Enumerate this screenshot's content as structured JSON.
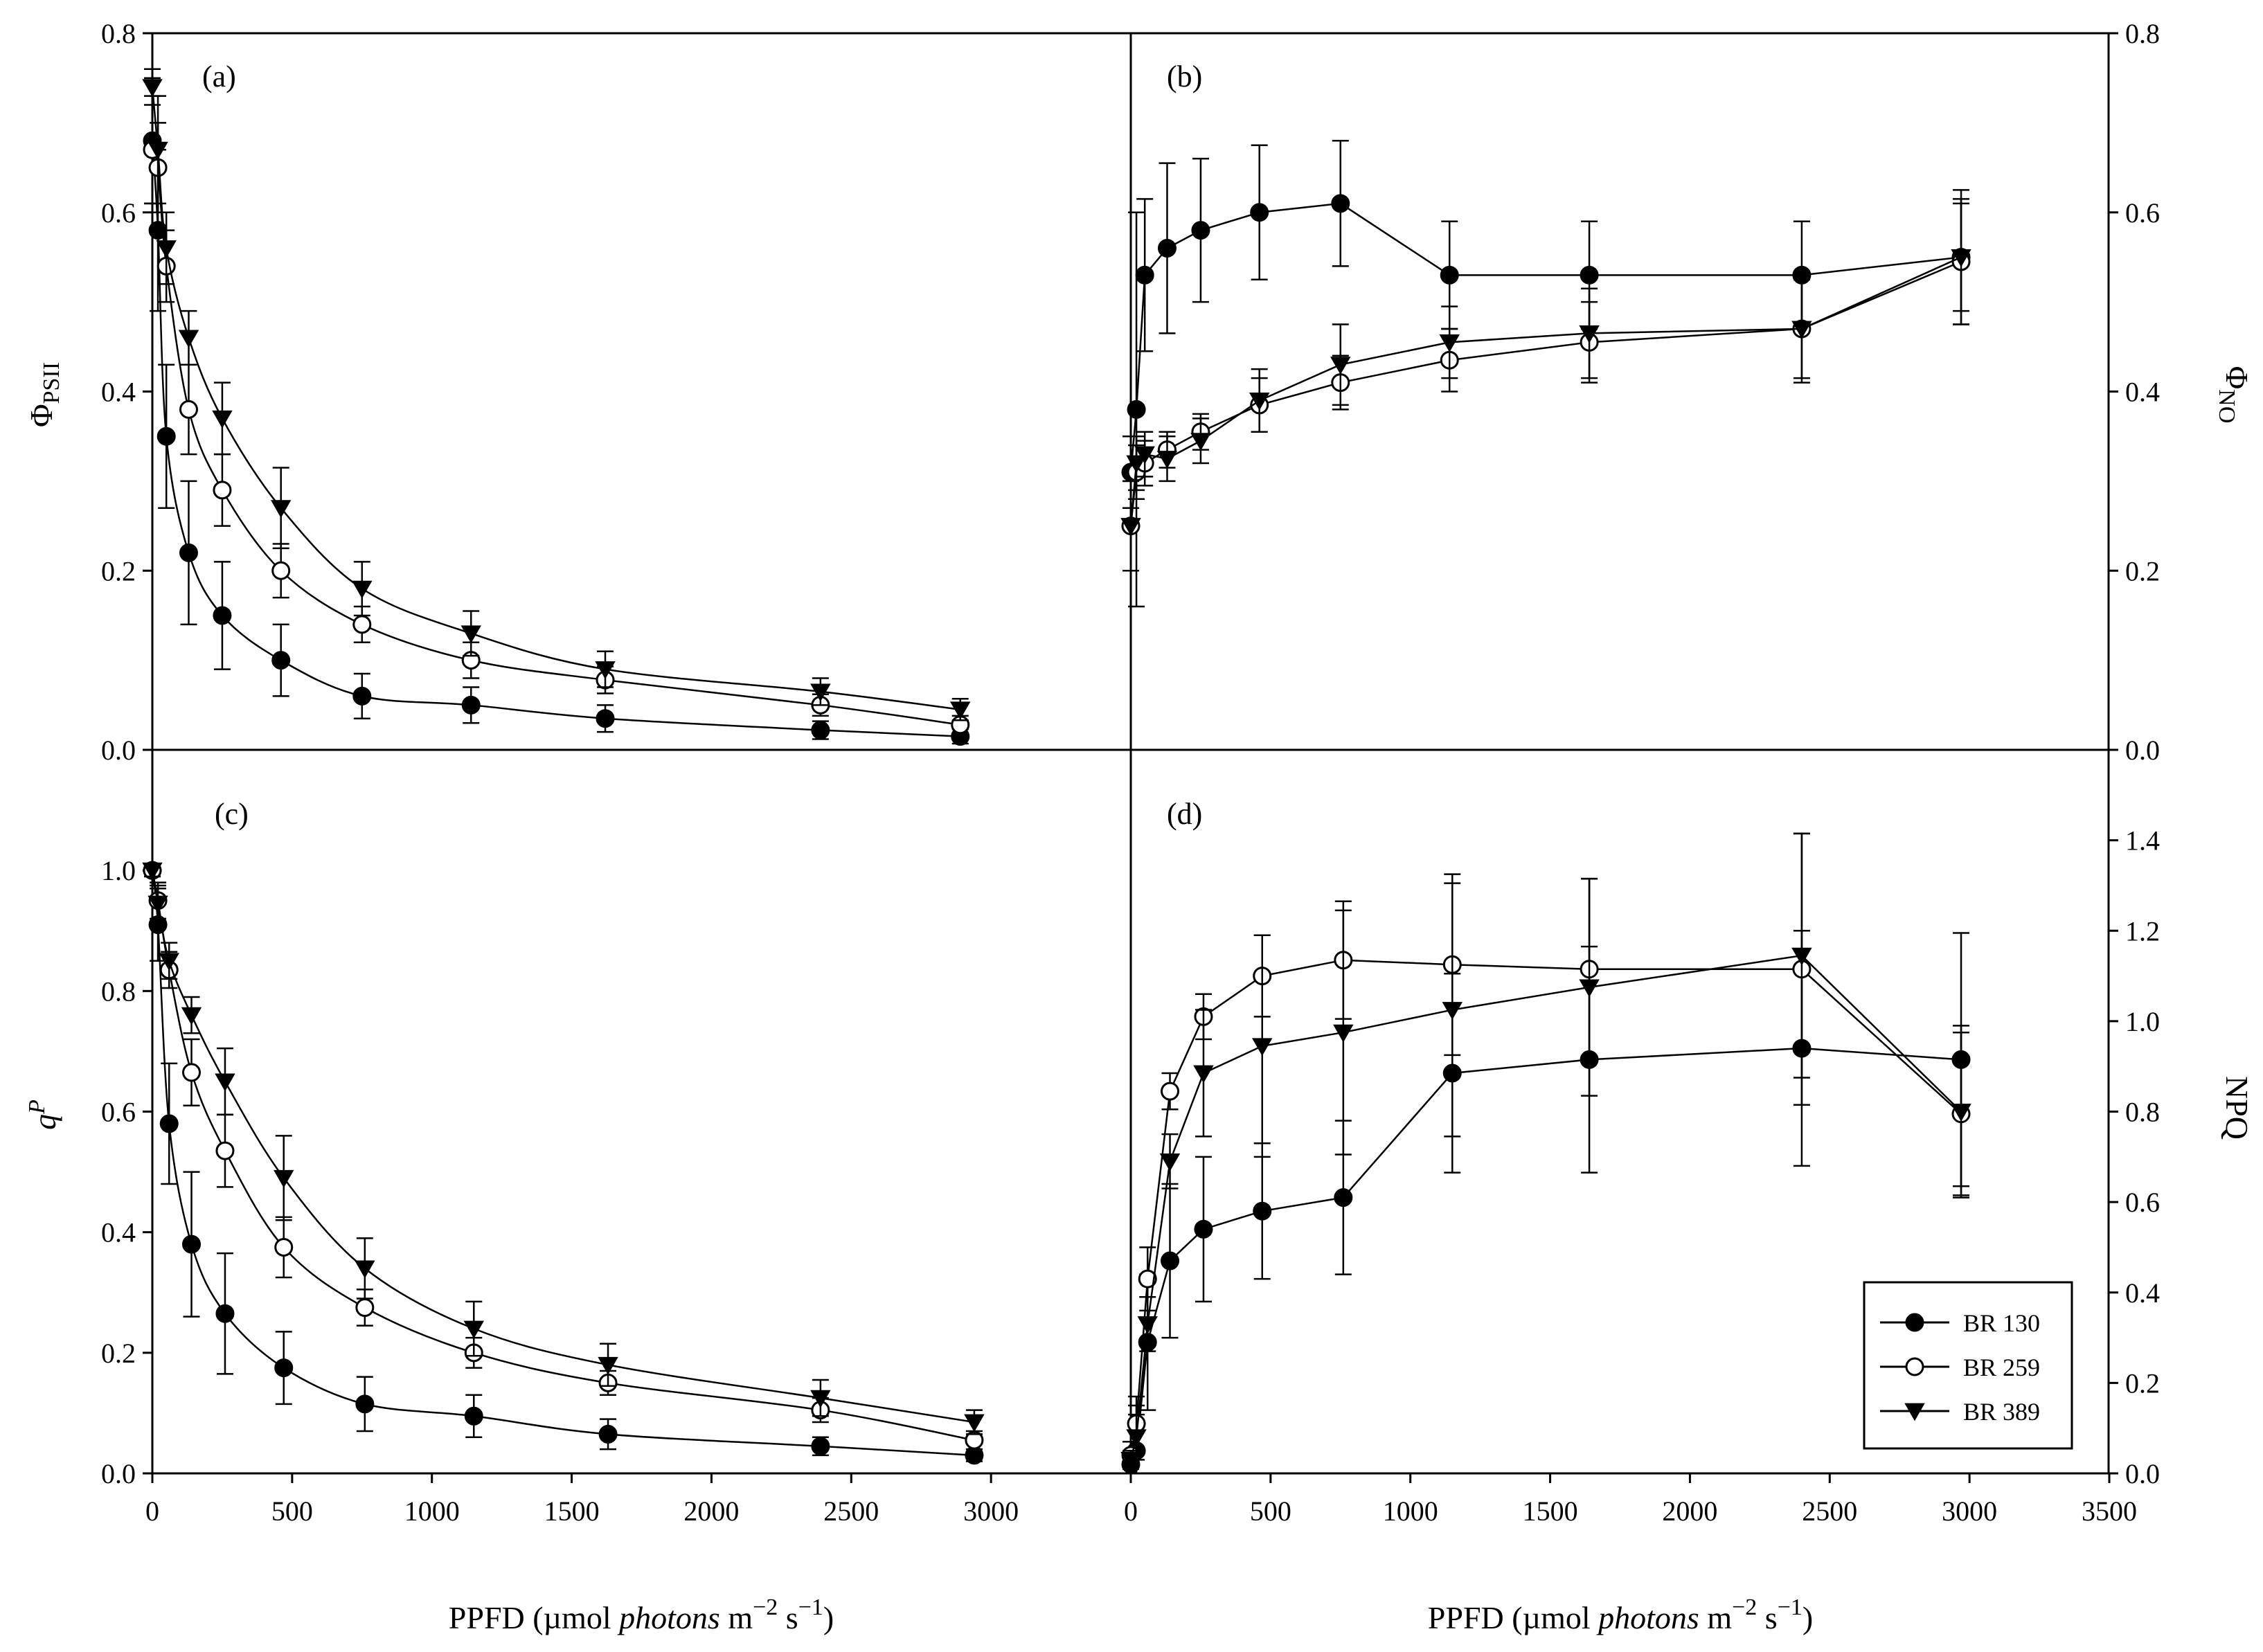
{
  "chart_data": [
    {
      "panel": "(a)",
      "type": "line",
      "ylabel": "ΦPSII",
      "ylabel_main": "Φ",
      "ylabel_sub": "PSII",
      "ylim": [
        0,
        0.8
      ],
      "yticks": [
        "0.0",
        "0.2",
        "0.4",
        "0.6",
        "0.8"
      ],
      "xlim": [
        0,
        3500
      ],
      "series": [
        {
          "name": "BR 130",
          "marker": "filled-circle",
          "x": [
            0,
            20,
            50,
            130,
            250,
            460,
            750,
            1140,
            1620,
            2390,
            2890
          ],
          "y": [
            0.68,
            0.58,
            0.35,
            0.22,
            0.15,
            0.1,
            0.06,
            0.05,
            0.035,
            0.022,
            0.015
          ],
          "err": [
            0.07,
            0.09,
            0.08,
            0.08,
            0.06,
            0.04,
            0.025,
            0.02,
            0.015,
            0.01,
            0.008
          ]
        },
        {
          "name": "BR 259",
          "marker": "open-circle",
          "x": [
            0,
            20,
            50,
            130,
            250,
            460,
            750,
            1140,
            1620,
            2390,
            2890
          ],
          "y": [
            0.67,
            0.65,
            0.54,
            0.38,
            0.29,
            0.2,
            0.14,
            0.1,
            0.078,
            0.05,
            0.028
          ],
          "err": [
            0.06,
            0.05,
            0.04,
            0.05,
            0.04,
            0.03,
            0.02,
            0.02,
            0.015,
            0.012,
            0.01
          ]
        },
        {
          "name": "BR 389",
          "marker": "filled-triangle",
          "x": [
            0,
            20,
            50,
            130,
            250,
            460,
            750,
            1140,
            1620,
            2390,
            2890
          ],
          "y": [
            0.74,
            0.67,
            0.56,
            0.46,
            0.37,
            0.27,
            0.18,
            0.13,
            0.09,
            0.065,
            0.045
          ],
          "err": [
            0.02,
            0.06,
            0.04,
            0.03,
            0.04,
            0.045,
            0.03,
            0.025,
            0.02,
            0.015,
            0.012
          ]
        }
      ]
    },
    {
      "panel": "(b)",
      "type": "line",
      "ylabel": "ΦNO",
      "ylabel_main": "Φ",
      "ylabel_sub": "NO",
      "ylim": [
        0,
        0.8
      ],
      "yticks": [
        "0.0",
        "0.2",
        "0.4",
        "0.6",
        "0.8"
      ],
      "xlim": [
        0,
        3500
      ],
      "series": [
        {
          "name": "BR 130",
          "marker": "filled-circle",
          "x": [
            0,
            20,
            50,
            130,
            250,
            460,
            750,
            1140,
            1640,
            2400,
            2970
          ],
          "y": [
            0.31,
            0.38,
            0.53,
            0.56,
            0.58,
            0.6,
            0.61,
            0.53,
            0.53,
            0.53,
            0.55
          ],
          "err": [
            0.04,
            0.22,
            0.085,
            0.095,
            0.08,
            0.075,
            0.07,
            0.06,
            0.06,
            0.06,
            0.075
          ]
        },
        {
          "name": "BR 259",
          "marker": "open-circle",
          "x": [
            0,
            20,
            50,
            130,
            250,
            460,
            750,
            1140,
            1640,
            2400,
            2970
          ],
          "y": [
            0.25,
            0.31,
            0.32,
            0.335,
            0.355,
            0.385,
            0.41,
            0.435,
            0.455,
            0.47,
            0.545
          ],
          "err": [
            0.05,
            0.03,
            0.025,
            0.02,
            0.02,
            0.03,
            0.03,
            0.035,
            0.045,
            0.06,
            0.07
          ]
        },
        {
          "name": "BR 389",
          "marker": "filled-triangle",
          "x": [
            0,
            20,
            50,
            130,
            250,
            460,
            750,
            1140,
            1640,
            2400,
            2970
          ],
          "y": [
            0.25,
            0.32,
            0.33,
            0.325,
            0.345,
            0.39,
            0.43,
            0.455,
            0.465,
            0.47,
            0.55
          ],
          "err": [
            0.05,
            0.03,
            0.025,
            0.025,
            0.025,
            0.035,
            0.045,
            0.04,
            0.05,
            0.055,
            0.06
          ]
        }
      ]
    },
    {
      "panel": "(c)",
      "type": "line",
      "ylabel": "qP",
      "ylim": [
        0,
        1.2
      ],
      "yticks": [
        "0.0",
        "0.2",
        "0.4",
        "0.6",
        "0.8",
        "1.0"
      ],
      "xlim": [
        0,
        3500
      ],
      "xticks": [
        "0",
        "500",
        "1000",
        "1500",
        "2000",
        "2500",
        "3000"
      ],
      "xlabel": "PPFD (µmol photons m−2 s−1)",
      "series": [
        {
          "name": "BR 130",
          "marker": "filled-circle",
          "x": [
            0,
            20,
            60,
            140,
            260,
            470,
            760,
            1150,
            1630,
            2390,
            2940
          ],
          "y": [
            1.0,
            0.91,
            0.58,
            0.38,
            0.265,
            0.175,
            0.115,
            0.095,
            0.065,
            0.045,
            0.03
          ],
          "err": [
            0.01,
            0.06,
            0.1,
            0.12,
            0.1,
            0.06,
            0.045,
            0.035,
            0.025,
            0.015,
            0.01
          ]
        },
        {
          "name": "BR 259",
          "marker": "open-circle",
          "x": [
            0,
            20,
            60,
            140,
            260,
            470,
            760,
            1150,
            1630,
            2390,
            2940
          ],
          "y": [
            1.0,
            0.95,
            0.835,
            0.665,
            0.535,
            0.375,
            0.275,
            0.2,
            0.15,
            0.105,
            0.055
          ],
          "err": [
            0.01,
            0.03,
            0.03,
            0.055,
            0.06,
            0.05,
            0.03,
            0.025,
            0.02,
            0.02,
            0.015
          ]
        },
        {
          "name": "BR 389",
          "marker": "filled-triangle",
          "x": [
            0,
            20,
            60,
            140,
            260,
            470,
            760,
            1150,
            1630,
            2390,
            2940
          ],
          "y": [
            1.0,
            0.945,
            0.85,
            0.76,
            0.65,
            0.49,
            0.34,
            0.24,
            0.18,
            0.125,
            0.085
          ],
          "err": [
            0.01,
            0.03,
            0.03,
            0.03,
            0.055,
            0.07,
            0.05,
            0.045,
            0.035,
            0.03,
            0.02
          ]
        }
      ]
    },
    {
      "panel": "(d)",
      "type": "line",
      "ylabel": "NPQ",
      "ylim": [
        0,
        1.6
      ],
      "yticks": [
        "0.0",
        "0.2",
        "0.4",
        "0.6",
        "0.8",
        "1.0",
        "1.2",
        "1.4"
      ],
      "xlim": [
        0,
        3500
      ],
      "xticks": [
        "0",
        "500",
        "1000",
        "1500",
        "2000",
        "2500",
        "3000",
        "3500"
      ],
      "xlabel": "PPFD (µmol photons m−2 s−1)",
      "legend": {
        "position": "bottom-right",
        "entries": [
          "BR 130",
          "BR 259",
          "BR 389"
        ]
      },
      "series": [
        {
          "name": "BR 130",
          "marker": "filled-circle",
          "x": [
            0,
            20,
            60,
            140,
            260,
            470,
            760,
            1150,
            1640,
            2400,
            2970
          ],
          "y": [
            0.02,
            0.05,
            0.29,
            0.47,
            0.54,
            0.58,
            0.61,
            0.885,
            0.915,
            0.94,
            0.915
          ],
          "err": [
            0.02,
            0.1,
            0.15,
            0.17,
            0.16,
            0.15,
            0.17,
            0.22,
            0.25,
            0.26,
            0.28
          ]
        },
        {
          "name": "BR 259",
          "marker": "open-circle",
          "x": [
            0,
            20,
            60,
            140,
            260,
            470,
            760,
            1150,
            1640,
            2400,
            2970
          ],
          "y": [
            0.04,
            0.11,
            0.43,
            0.845,
            1.01,
            1.1,
            1.135,
            1.125,
            1.115,
            1.115,
            0.795
          ],
          "err": [
            0.03,
            0.06,
            0.07,
            0.04,
            0.05,
            0.09,
            0.13,
            0.2,
            0.2,
            0.3,
            0.18
          ]
        },
        {
          "name": "BR 389",
          "marker": "filled-triangle",
          "x": [
            0,
            20,
            60,
            140,
            260,
            470,
            760,
            1150,
            1640,
            2400,
            2970
          ],
          "y": [
            0.03,
            0.08,
            0.33,
            0.69,
            0.885,
            0.945,
            0.975,
            1.025,
            1.075,
            1.145,
            0.8
          ],
          "err": [
            0.02,
            0.05,
            0.06,
            0.06,
            0.14,
            0.245,
            0.27,
            0.28,
            0.24,
            0.27,
            0.19
          ]
        }
      ]
    }
  ],
  "xlabel_parts": {
    "prefix": "PPFD (µmol ",
    "italic": "photons",
    "m": " m",
    "exp_m": "−2",
    "s": " s",
    "exp_s": "−1",
    "suffix": ")"
  },
  "ylabel_c_italic": "q",
  "ylabel_c_sup": "P"
}
